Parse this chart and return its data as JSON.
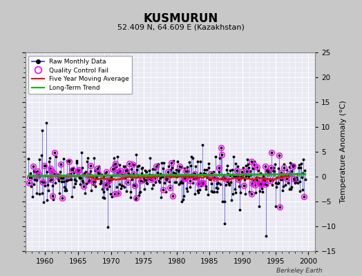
{
  "title": "KUSMURUN",
  "subtitle": "52.409 N, 64.609 E (Kazakhstan)",
  "ylabel": "Temperature Anomaly (°C)",
  "watermark": "Berkeley Earth",
  "xlim": [
    1957,
    2001
  ],
  "ylim": [
    -15,
    25
  ],
  "yticks": [
    -15,
    -10,
    -5,
    0,
    5,
    10,
    15,
    20,
    25
  ],
  "xticks": [
    1960,
    1965,
    1970,
    1975,
    1980,
    1985,
    1990,
    1995,
    2000
  ],
  "outer_bg_color": "#c8c8c8",
  "plot_bg_color": "#eaeaf4",
  "grid_color": "#ffffff",
  "raw_line_color": "#3030cc",
  "raw_dot_color": "#000000",
  "qc_fail_color": "#ff00ff",
  "moving_avg_color": "#ff0000",
  "trend_color": "#00bb00",
  "trend_intercept": 0.3,
  "trend_slope": 0.008
}
